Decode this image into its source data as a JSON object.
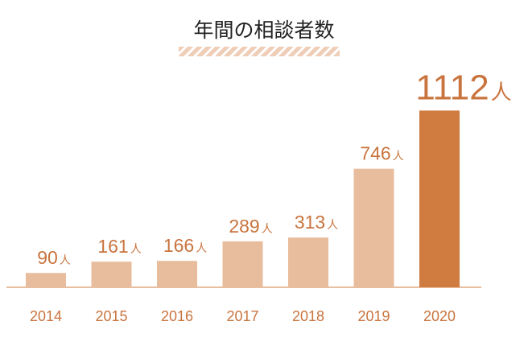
{
  "chart_data": {
    "type": "bar",
    "title": "年間の相談者数",
    "categories": [
      "2014",
      "2015",
      "2016",
      "2017",
      "2018",
      "2019",
      "2020"
    ],
    "values": [
      90,
      161,
      166,
      289,
      313,
      746,
      1112
    ],
    "data_labels": [
      "90",
      "161",
      "166",
      "289",
      "313",
      "746",
      "1112"
    ],
    "unit": "人",
    "ylim": [
      0,
      1200
    ],
    "grid": false,
    "highlight_category": "2020"
  },
  "colors": {
    "bar": "#e8bd9d",
    "highlight_bar": "#d07b40",
    "label": "#c9743e",
    "baseline": "#e0a882",
    "title": "#222222"
  }
}
